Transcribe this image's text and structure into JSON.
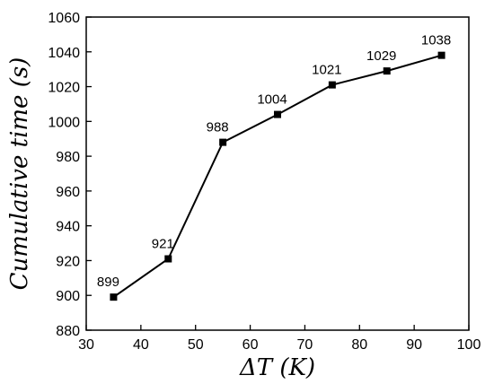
{
  "chart_data": {
    "type": "line",
    "xlabel": "ΔT (K)",
    "ylabel": "Cumulative time (s)",
    "xlim": [
      30,
      100
    ],
    "ylim": [
      880,
      1060
    ],
    "x_ticks": [
      30,
      40,
      50,
      60,
      70,
      80,
      90,
      100
    ],
    "y_ticks": [
      880,
      900,
      920,
      940,
      960,
      980,
      1000,
      1020,
      1040,
      1060
    ],
    "x": [
      35,
      45,
      55,
      65,
      75,
      85,
      95
    ],
    "series": [
      {
        "values": [
          899,
          921,
          988,
          1004,
          1021,
          1029,
          1038
        ]
      }
    ],
    "data_labels": [
      "899",
      "921",
      "988",
      "1004",
      "1021",
      "1029",
      "1038"
    ],
    "grid": false,
    "marker": "square",
    "color": "#000000"
  }
}
